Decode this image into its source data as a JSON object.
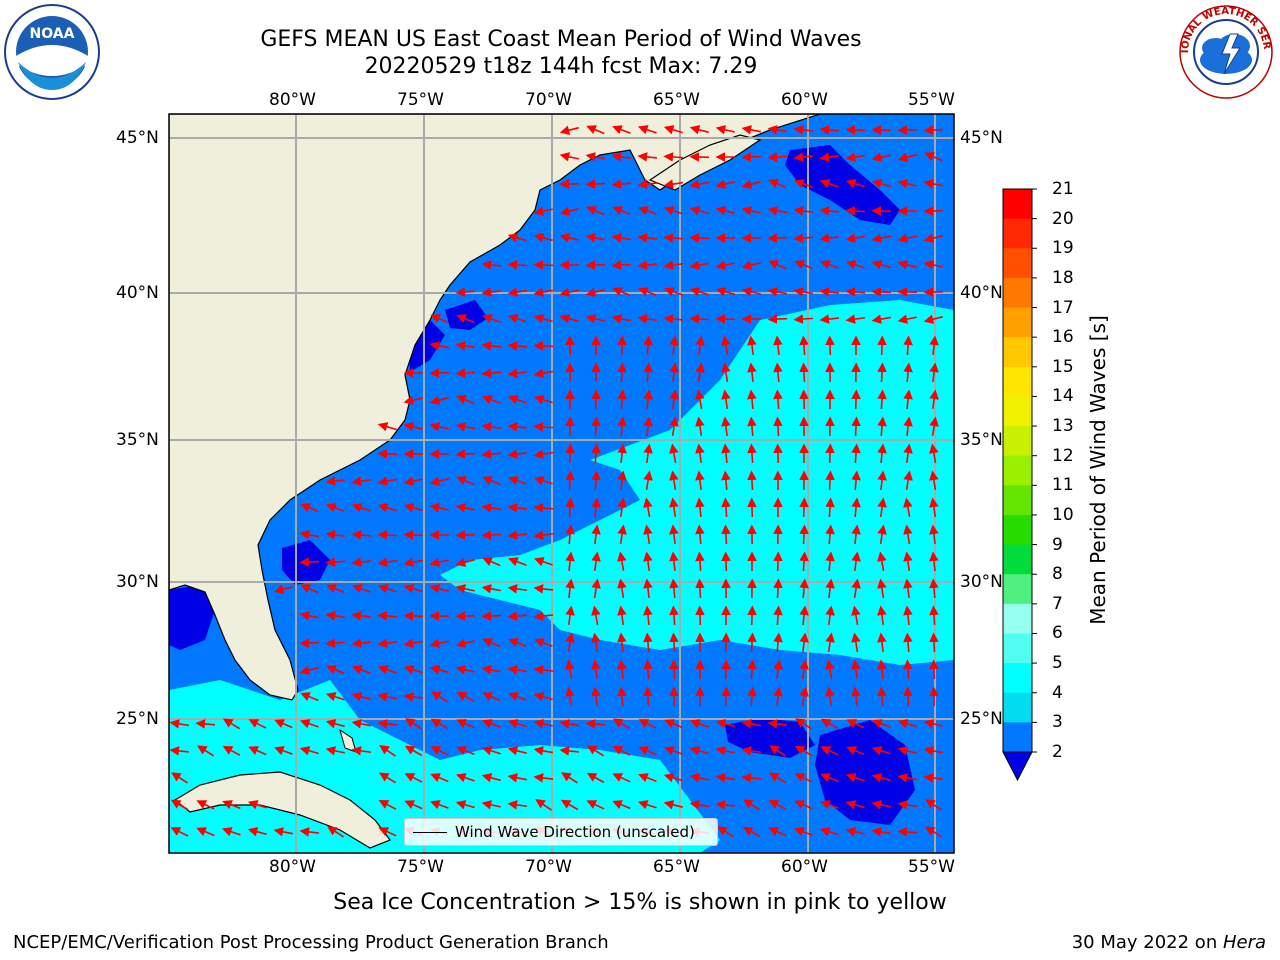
{
  "title": {
    "line1": "GEFS MEAN US East Coast Mean Period of Wind Waves",
    "line2": "20220529 t18z 144h fcst   Max: 7.29"
  },
  "logos": {
    "left": {
      "name": "noaa-logo",
      "text": "NOAA"
    },
    "right": {
      "name": "nws-logo",
      "text": "NATIONAL WEATHER SERVICE"
    }
  },
  "axes": {
    "lon_labels": [
      "80°W",
      "75°W",
      "70°W",
      "65°W",
      "60°W",
      "55°W"
    ],
    "lat_labels": [
      "45°N",
      "40°N",
      "35°N",
      "30°N",
      "25°N"
    ]
  },
  "colorbar": {
    "label": "Mean Period of Wind Waves [s]",
    "ticks": [
      "21",
      "20",
      "19",
      "18",
      "17",
      "16",
      "15",
      "14",
      "13",
      "12",
      "11",
      "10",
      "9",
      "8",
      "7",
      "6",
      "5",
      "4",
      "3",
      "2"
    ],
    "colors": [
      "#ff0000",
      "#ff2800",
      "#ff5000",
      "#ff7800",
      "#ffa000",
      "#ffc800",
      "#ffe600",
      "#f0f000",
      "#c8f000",
      "#9bf000",
      "#64e600",
      "#28dc00",
      "#00dc3c",
      "#50f080",
      "#96fff0",
      "#50fff0",
      "#00ffff",
      "#00dcf0",
      "#0078ff",
      "#0000e6"
    ]
  },
  "legend": {
    "label": "Wind Wave Direction (unscaled)"
  },
  "subtitle": "Sea Ice Concentration > 15% is shown in pink to yellow",
  "footer": {
    "left": "NCEP/EMC/Verification Post Processing Product Generation Branch",
    "right_date": "30 May 2022 on ",
    "right_host": "Hera"
  },
  "style": {
    "land": "#efefdc",
    "ocean_2_4": "#0078ff",
    "ocean_4_6": "#00ffff",
    "ocean_lt2": "#0000e6",
    "arrow": "#ff0000",
    "grid": "#aaaaaa"
  }
}
